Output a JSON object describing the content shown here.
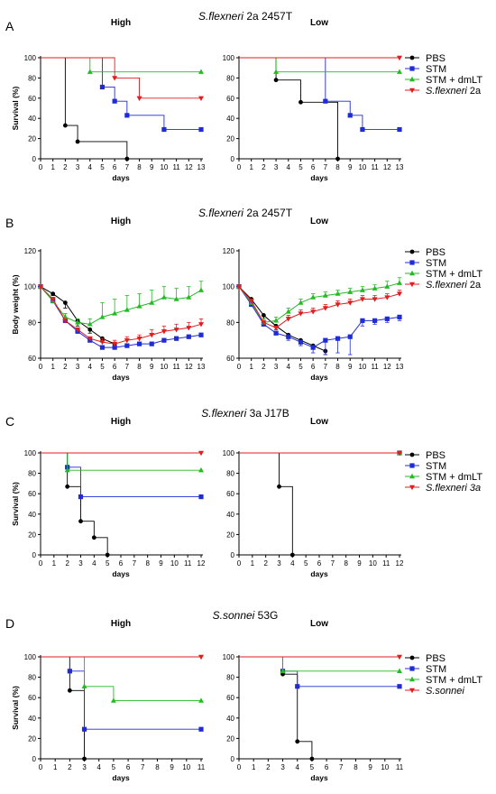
{
  "colors": {
    "PBS": "#000000",
    "STM": "#1f2bd6",
    "STM + dmLT": "#22bb22",
    "S.flexneri 2a": "#e01e1e",
    "S.flexneri 3a": "#e01e1e",
    "S.sonnei": "#e01e1e"
  },
  "chart_data": [
    {
      "panel": "A",
      "type": "line",
      "step": true,
      "title_italic": "S.flexneri",
      "title_rest": " 2a 2457T",
      "legend": [
        {
          "name": "PBS",
          "marker": "circle"
        },
        {
          "name": "STM",
          "marker": "square"
        },
        {
          "name": "STM + dmLT",
          "marker": "triangle-up"
        },
        {
          "name": "S.flexneri 2a",
          "italic_part": "S.flexneri",
          "rest_part": " 2a",
          "marker": "triangle-down"
        }
      ],
      "ylabel": "Survival (%)",
      "xlabel": "days",
      "xlim": [
        0,
        13
      ],
      "ylim": [
        0,
        100
      ],
      "xticks": [
        0,
        1,
        2,
        3,
        4,
        5,
        6,
        7,
        8,
        9,
        10,
        11,
        12,
        13
      ],
      "yticks": [
        0,
        20,
        40,
        60,
        80,
        100
      ],
      "subplots": [
        {
          "title": "High",
          "series": [
            {
              "name": "PBS",
              "x": [
                0,
                2,
                3,
                7
              ],
              "y": [
                100,
                33,
                17,
                0
              ]
            },
            {
              "name": "STM",
              "x": [
                0,
                5,
                6,
                7,
                10,
                13
              ],
              "y": [
                100,
                71,
                57,
                43,
                29,
                29
              ]
            },
            {
              "name": "STM + dmLT",
              "x": [
                0,
                4,
                13
              ],
              "y": [
                100,
                86,
                86
              ]
            },
            {
              "name": "S.flexneri 2a",
              "x": [
                0,
                6,
                8,
                13
              ],
              "y": [
                100,
                80,
                60,
                60
              ]
            }
          ]
        },
        {
          "title": "Low",
          "series": [
            {
              "name": "PBS",
              "x": [
                0,
                3,
                5,
                8
              ],
              "y": [
                100,
                78,
                56,
                0
              ]
            },
            {
              "name": "STM",
              "x": [
                0,
                7,
                9,
                10,
                13
              ],
              "y": [
                100,
                57,
                43,
                29,
                29
              ]
            },
            {
              "name": "STM + dmLT",
              "x": [
                0,
                3,
                13
              ],
              "y": [
                100,
                86,
                86
              ]
            },
            {
              "name": "S.flexneri 2a",
              "x": [
                0,
                13
              ],
              "y": [
                100,
                100
              ]
            }
          ]
        }
      ]
    },
    {
      "panel": "B",
      "type": "line",
      "step": false,
      "title_italic": "S.flexneri",
      "title_rest": " 2a 2457T",
      "legend": [
        {
          "name": "PBS",
          "marker": "circle"
        },
        {
          "name": "STM",
          "marker": "square"
        },
        {
          "name": "STM + dmLT",
          "marker": "triangle-up"
        },
        {
          "name": "S.flexneri 2a",
          "italic_part": "S.flexneri",
          "rest_part": " 2a",
          "marker": "triangle-down"
        }
      ],
      "ylabel": "Body weight (%)",
      "xlabel": "days",
      "xlim": [
        0,
        13
      ],
      "ylim": [
        60,
        120
      ],
      "xticks": [
        0,
        1,
        2,
        3,
        4,
        5,
        6,
        7,
        8,
        9,
        10,
        11,
        12,
        13
      ],
      "yticks": [
        60,
        80,
        100,
        120
      ],
      "subplots": [
        {
          "title": "High",
          "series": [
            {
              "name": "PBS",
              "x": [
                0,
                1,
                2,
                3,
                4,
                5,
                6
              ],
              "y": [
                100,
                96,
                91,
                81,
                76,
                71,
                68
              ],
              "err": [
                0,
                1,
                3,
                3,
                2,
                2,
                2
              ]
            },
            {
              "name": "STM",
              "x": [
                0,
                1,
                2,
                3,
                4,
                5,
                6,
                7,
                8,
                9,
                10,
                11,
                12,
                13
              ],
              "y": [
                100,
                92,
                81,
                75,
                70,
                66,
                66,
                67,
                68,
                68,
                70,
                71,
                72,
                73
              ],
              "err": [
                0,
                1,
                1,
                1,
                1,
                1,
                1,
                1,
                1,
                1,
                1,
                1,
                1,
                1
              ]
            },
            {
              "name": "STM + dmLT",
              "x": [
                0,
                1,
                2,
                3,
                4,
                5,
                6,
                7,
                8,
                9,
                10,
                11,
                12,
                13
              ],
              "y": [
                100,
                92,
                83,
                80,
                79,
                83,
                85,
                87,
                89,
                91,
                94,
                93,
                94,
                98
              ],
              "err": [
                0,
                2,
                2,
                2,
                3,
                8,
                8,
                8,
                7,
                7,
                6,
                6,
                6,
                5
              ]
            },
            {
              "name": "S.flexneri 2a",
              "x": [
                0,
                1,
                2,
                3,
                4,
                5,
                6,
                7,
                8,
                9,
                10,
                11,
                12,
                13
              ],
              "y": [
                100,
                93,
                81,
                76,
                71,
                69,
                68,
                70,
                71,
                73,
                75,
                76,
                77,
                79
              ],
              "err": [
                0,
                1,
                1,
                1,
                1,
                2,
                2,
                2,
                2,
                3,
                3,
                3,
                3,
                3
              ]
            }
          ]
        },
        {
          "title": "Low",
          "series": [
            {
              "name": "PBS",
              "x": [
                0,
                1,
                2,
                3,
                4,
                5,
                6,
                7
              ],
              "y": [
                100,
                93,
                84,
                78,
                73,
                70,
                67,
                64
              ],
              "err": [
                0,
                1,
                2,
                2,
                2,
                2,
                2,
                2
              ]
            },
            {
              "name": "STM",
              "x": [
                0,
                1,
                2,
                3,
                4,
                5,
                6,
                7,
                8,
                9,
                10,
                11,
                12,
                13
              ],
              "y": [
                100,
                90,
                79,
                74,
                72,
                69,
                66,
                70,
                71,
                72,
                81,
                81,
                82,
                83
              ],
              "err": [
                0,
                1,
                1,
                1,
                2,
                2,
                3,
                8,
                8,
                10,
                3,
                2,
                2,
                2
              ]
            },
            {
              "name": "STM + dmLT",
              "x": [
                0,
                1,
                2,
                3,
                4,
                5,
                6,
                7,
                8,
                9,
                10,
                11,
                12,
                13
              ],
              "y": [
                100,
                91,
                80,
                81,
                86,
                91,
                94,
                95,
                96,
                97,
                98,
                99,
                100,
                102
              ],
              "err": [
                0,
                2,
                2,
                2,
                2,
                2,
                2,
                2,
                2,
                2,
                2,
                2,
                3,
                3
              ]
            },
            {
              "name": "S.flexneri 2a",
              "x": [
                0,
                1,
                2,
                3,
                4,
                5,
                6,
                7,
                8,
                9,
                10,
                11,
                12,
                13
              ],
              "y": [
                100,
                92,
                80,
                77,
                82,
                85,
                86,
                88,
                90,
                91,
                93,
                93,
                94,
                96
              ],
              "err": [
                0,
                1,
                1,
                1,
                2,
                2,
                2,
                2,
                2,
                2,
                2,
                2,
                2,
                2
              ]
            }
          ]
        }
      ]
    },
    {
      "panel": "C",
      "type": "line",
      "step": true,
      "title_italic": "S.flexneri",
      "title_rest": " 3a J17B",
      "legend": [
        {
          "name": "PBS",
          "marker": "circle"
        },
        {
          "name": "STM",
          "marker": "square"
        },
        {
          "name": "STM + dmLT",
          "marker": "triangle-up"
        },
        {
          "name": "S.flexneri 3a",
          "italic_part": "S.flexneri 3a",
          "rest_part": "",
          "marker": "triangle-down"
        }
      ],
      "ylabel": "Survival (%)",
      "xlabel": "days",
      "xlim": [
        0,
        12
      ],
      "ylim": [
        0,
        100
      ],
      "xticks": [
        0,
        1,
        2,
        3,
        4,
        5,
        6,
        7,
        8,
        9,
        10,
        11,
        12
      ],
      "yticks": [
        0,
        20,
        40,
        60,
        80,
        100
      ],
      "subplots": [
        {
          "title": "High",
          "series": [
            {
              "name": "PBS",
              "x": [
                0,
                2,
                3,
                4,
                5
              ],
              "y": [
                100,
                67,
                33,
                17,
                0
              ]
            },
            {
              "name": "STM",
              "x": [
                0,
                2,
                3,
                12
              ],
              "y": [
                100,
                86,
                57,
                57
              ]
            },
            {
              "name": "STM + dmLT",
              "x": [
                0,
                2,
                12
              ],
              "y": [
                100,
                83,
                83
              ]
            },
            {
              "name": "S.flexneri 3a",
              "x": [
                0,
                12
              ],
              "y": [
                100,
                100
              ]
            }
          ]
        },
        {
          "title": "Low",
          "series": [
            {
              "name": "PBS",
              "x": [
                0,
                3,
                4
              ],
              "y": [
                100,
                67,
                0
              ]
            },
            {
              "name": "STM",
              "x": [
                0,
                12
              ],
              "y": [
                100,
                100
              ]
            },
            {
              "name": "STM + dmLT",
              "x": [
                0,
                12
              ],
              "y": [
                100,
                100
              ]
            },
            {
              "name": "S.flexneri 3a",
              "x": [
                0,
                12
              ],
              "y": [
                100,
                100
              ]
            }
          ]
        }
      ]
    },
    {
      "panel": "D",
      "type": "line",
      "step": true,
      "title_italic": "S.sonnei",
      "title_rest": " 53G",
      "legend": [
        {
          "name": "PBS",
          "marker": "circle"
        },
        {
          "name": "STM",
          "marker": "square"
        },
        {
          "name": "STM + dmLT",
          "marker": "triangle-up"
        },
        {
          "name": "S.sonnei",
          "italic_part": "S.sonnei",
          "rest_part": "",
          "marker": "triangle-down"
        }
      ],
      "ylabel": "Survival (%)",
      "xlabel": "days",
      "xlim": [
        0,
        11
      ],
      "ylim": [
        0,
        100
      ],
      "xticks": [
        0,
        1,
        2,
        3,
        4,
        5,
        6,
        7,
        8,
        9,
        10,
        11
      ],
      "yticks": [
        0,
        20,
        40,
        60,
        80,
        100
      ],
      "subplots": [
        {
          "title": "High",
          "series": [
            {
              "name": "PBS",
              "x": [
                0,
                2,
                3
              ],
              "y": [
                100,
                67,
                0
              ]
            },
            {
              "name": "STM",
              "x": [
                0,
                2,
                3,
                11
              ],
              "y": [
                100,
                86,
                29,
                29
              ]
            },
            {
              "name": "STM + dmLT",
              "x": [
                0,
                3,
                5,
                11
              ],
              "y": [
                100,
                71,
                57,
                57
              ]
            },
            {
              "name": "S.sonnei",
              "x": [
                0,
                11
              ],
              "y": [
                100,
                100
              ]
            }
          ]
        },
        {
          "title": "Low",
          "series": [
            {
              "name": "PBS",
              "x": [
                0,
                3,
                4,
                5
              ],
              "y": [
                100,
                83,
                17,
                0
              ]
            },
            {
              "name": "STM",
              "x": [
                0,
                3,
                4,
                11
              ],
              "y": [
                100,
                86,
                71,
                71
              ]
            },
            {
              "name": "STM + dmLT",
              "x": [
                0,
                3,
                11
              ],
              "y": [
                100,
                86,
                86
              ]
            },
            {
              "name": "S.sonnei",
              "x": [
                0,
                11
              ],
              "y": [
                100,
                100
              ]
            }
          ]
        }
      ]
    }
  ]
}
